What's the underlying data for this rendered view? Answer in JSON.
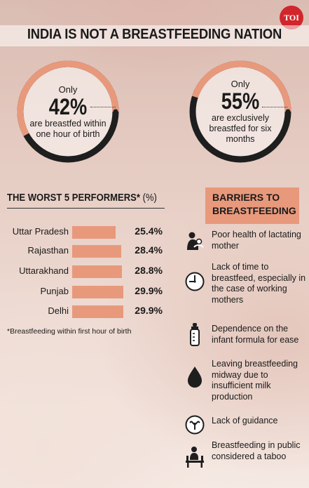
{
  "badge": "TOI",
  "headline": "INDIA IS NOT A BREASTFEEDING NATION",
  "stats": [
    {
      "only": "Only",
      "percent": "42%",
      "caption": "are breastfed within one hour of birth",
      "fraction": 0.42
    },
    {
      "only": "Only",
      "percent": "55%",
      "caption": "are exclusively breastfed for six months",
      "fraction": 0.55
    }
  ],
  "performers": {
    "title": "THE WORST 5 PERFORMERS*",
    "unit": "(%)",
    "rows": [
      {
        "state": "Uttar Pradesh",
        "value": "25.4%",
        "number": 25.4
      },
      {
        "state": "Rajasthan",
        "value": "28.4%",
        "number": 28.4
      },
      {
        "state": "Uttarakhand",
        "value": "28.8%",
        "number": 28.8
      },
      {
        "state": "Punjab",
        "value": "29.9%",
        "number": 29.9
      },
      {
        "state": "Delhi",
        "value": "29.9%",
        "number": 29.9
      }
    ],
    "footnote": "*Breastfeeding within first hour of birth"
  },
  "barriers": {
    "title_line1": "BARRIERS TO",
    "title_line2": "BREASTFEEDING",
    "items": [
      {
        "text": "Poor health of lactating mother",
        "icon": "mother-child-icon"
      },
      {
        "text": "Lack of time to breastfeed, especially in the case of working mothers",
        "icon": "clock-icon"
      },
      {
        "text": "Dependence on the infant formula for ease",
        "icon": "baby-bottle-icon"
      },
      {
        "text": "Leaving breastfeeding midway due to insufficient milk production",
        "icon": "drop-icon"
      },
      {
        "text": "Lack of guidance",
        "icon": "guidance-icon"
      },
      {
        "text": "Breastfeeding in public considered a taboo",
        "icon": "public-bench-icon"
      }
    ]
  },
  "colors": {
    "accent": "#e8997c",
    "ring_dark": "#1e1e1e",
    "badge": "#d0262c"
  }
}
